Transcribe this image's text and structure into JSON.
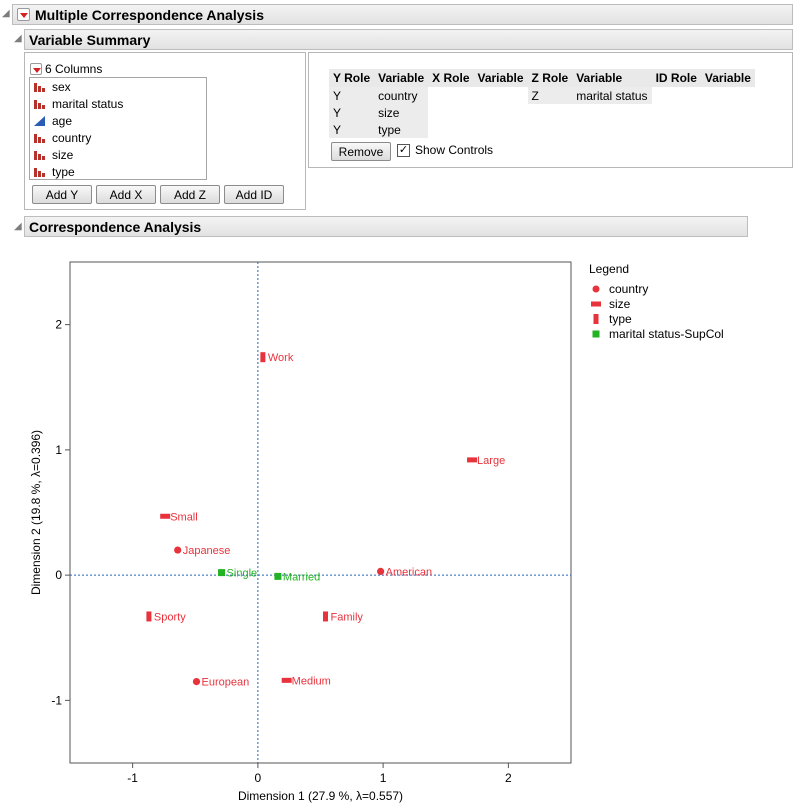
{
  "report": {
    "title": "Multiple Correspondence Analysis"
  },
  "variable_summary": {
    "title": "Variable Summary",
    "columns_header": "6 Columns",
    "columns": [
      {
        "name": "sex",
        "icon": "nominal-bar-icon"
      },
      {
        "name": "marital status",
        "icon": "nominal-bar-icon"
      },
      {
        "name": "age",
        "icon": "continuous-triangle-icon"
      },
      {
        "name": "country",
        "icon": "nominal-bar-icon"
      },
      {
        "name": "size",
        "icon": "nominal-bar-icon"
      },
      {
        "name": "type",
        "icon": "nominal-bar-icon"
      }
    ],
    "buttons": {
      "add_y": "Add Y",
      "add_x": "Add X",
      "add_z": "Add Z",
      "add_id": "Add ID"
    },
    "role_headers": [
      "Y Role",
      "Variable",
      "X Role",
      "Variable",
      "Z Role",
      "Variable",
      "ID Role",
      "Variable"
    ],
    "y_roles": [
      {
        "role": "Y",
        "variable": "country"
      },
      {
        "role": "Y",
        "variable": "size"
      },
      {
        "role": "Y",
        "variable": "type"
      }
    ],
    "z_roles": [
      {
        "role": "Z",
        "variable": "marital status"
      }
    ],
    "remove_label": "Remove",
    "show_controls_label": "Show Controls",
    "show_controls_checked": true
  },
  "correspondence": {
    "title": "Correspondence Analysis"
  },
  "colors": {
    "primary_points": "#e8323c",
    "supplementary_points": "#21b321",
    "reference_lines": "#2a62b5",
    "nominal_icon": "#b6322b",
    "continuous_icon": "#2a5bb5"
  },
  "chart_data": {
    "type": "scatter",
    "xlabel": "Dimension 1  (27.9 %, λ=0.557)",
    "ylabel": "Dimension 2  (19.8 %, λ=0.396)",
    "xlim": [
      -1.5,
      2.5
    ],
    "ylim": [
      -1.5,
      2.5
    ],
    "xticks": [
      -1,
      0,
      1,
      2
    ],
    "yticks": [
      -1,
      0,
      1,
      2
    ],
    "reference_lines": {
      "x": 0,
      "y": 0
    },
    "legend": {
      "title": "Legend",
      "placement": "right",
      "entries": [
        {
          "label": "country",
          "marker": "circle",
          "color": "#e8323c"
        },
        {
          "label": "size",
          "marker": "hbar",
          "color": "#e8323c"
        },
        {
          "label": "type",
          "marker": "vbar",
          "color": "#e8323c"
        },
        {
          "label": "marital status-SupCol",
          "marker": "square",
          "color": "#21b321"
        }
      ]
    },
    "series": [
      {
        "name": "country",
        "marker": "circle",
        "color": "#e8323c",
        "points": [
          {
            "label": "American",
            "x": 0.98,
            "y": 0.03
          },
          {
            "label": "European",
            "x": -0.49,
            "y": -0.85
          },
          {
            "label": "Japanese",
            "x": -0.64,
            "y": 0.2
          }
        ]
      },
      {
        "name": "size",
        "marker": "hbar",
        "color": "#e8323c",
        "points": [
          {
            "label": "Large",
            "x": 1.71,
            "y": 0.92
          },
          {
            "label": "Medium",
            "x": 0.23,
            "y": -0.84
          },
          {
            "label": "Small",
            "x": -0.74,
            "y": 0.47
          }
        ]
      },
      {
        "name": "type",
        "marker": "vbar",
        "color": "#e8323c",
        "points": [
          {
            "label": "Family",
            "x": 0.54,
            "y": -0.33
          },
          {
            "label": "Sporty",
            "x": -0.87,
            "y": -0.33
          },
          {
            "label": "Work",
            "x": 0.04,
            "y": 1.74
          }
        ]
      },
      {
        "name": "marital status-SupCol",
        "marker": "square",
        "color": "#21b321",
        "points": [
          {
            "label": "Married",
            "x": 0.16,
            "y": -0.01
          },
          {
            "label": "Single",
            "x": -0.29,
            "y": 0.02
          }
        ]
      }
    ]
  }
}
